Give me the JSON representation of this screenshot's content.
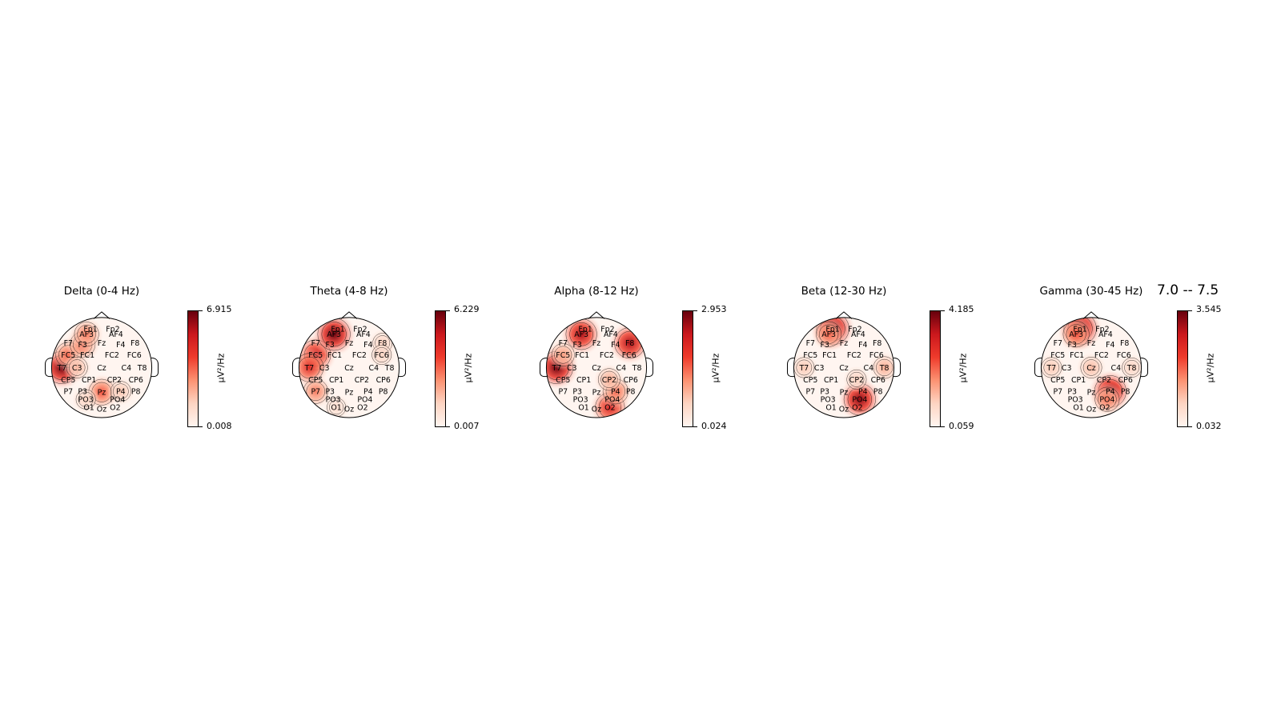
{
  "figure": {
    "time_label": "7.0 -- 7.5"
  },
  "panels": [
    {
      "title": "Delta (0-4 Hz)",
      "vmax": "6.915",
      "vmin": "0.008",
      "unit": "µV²/Hz",
      "hotspots": [
        {
          "channel": "T7",
          "v": 1.0
        },
        {
          "channel": "FC5",
          "v": 0.55
        },
        {
          "channel": "F3",
          "v": 0.55
        },
        {
          "channel": "AF3",
          "v": 0.5
        },
        {
          "channel": "Pz",
          "v": 0.6
        },
        {
          "channel": "C3",
          "v": 0.3
        },
        {
          "channel": "P4",
          "v": 0.25
        },
        {
          "channel": "PO3",
          "v": 0.2
        }
      ]
    },
    {
      "title": "Theta (4-8 Hz)",
      "vmax": "6.229",
      "vmin": "0.007",
      "unit": "µV²/Hz",
      "hotspots": [
        {
          "channel": "FC5",
          "v": 0.85
        },
        {
          "channel": "T7",
          "v": 0.75
        },
        {
          "channel": "AF3",
          "v": 1.0
        },
        {
          "channel": "P7",
          "v": 0.5
        },
        {
          "channel": "F8",
          "v": 0.2
        },
        {
          "channel": "FC6",
          "v": 0.2
        },
        {
          "channel": "O1",
          "v": 0.15
        }
      ]
    },
    {
      "title": "Alpha (8-12 Hz)",
      "vmax": "2.953",
      "vmin": "0.024",
      "unit": "µV²/Hz",
      "hotspots": [
        {
          "channel": "T7",
          "v": 1.0
        },
        {
          "channel": "AF3",
          "v": 0.9
        },
        {
          "channel": "F8",
          "v": 0.9
        },
        {
          "channel": "O2",
          "v": 0.8
        },
        {
          "channel": "P4",
          "v": 0.55
        },
        {
          "channel": "CP2",
          "v": 0.35
        },
        {
          "channel": "FC5",
          "v": 0.4
        }
      ]
    },
    {
      "title": "Beta (12-30 Hz)",
      "vmax": "4.185",
      "vmin": "0.059",
      "unit": "µV²/Hz",
      "hotspots": [
        {
          "channel": "Fp1",
          "v": 1.0
        },
        {
          "channel": "AF3",
          "v": 0.55
        },
        {
          "channel": "PO4",
          "v": 0.95
        },
        {
          "channel": "T8",
          "v": 0.35
        },
        {
          "channel": "T7",
          "v": 0.25
        },
        {
          "channel": "CP2",
          "v": 0.2
        }
      ]
    },
    {
      "title": "Gamma (30-45 Hz)",
      "vmax": "3.545",
      "vmin": "0.032",
      "unit": "µV²/Hz",
      "hotspots": [
        {
          "channel": "Fp1",
          "v": 1.0
        },
        {
          "channel": "AF3",
          "v": 0.6
        },
        {
          "channel": "P4",
          "v": 0.95
        },
        {
          "channel": "PO4",
          "v": 0.5
        },
        {
          "channel": "T7",
          "v": 0.25
        },
        {
          "channel": "Cz",
          "v": 0.3
        },
        {
          "channel": "T8",
          "v": 0.2
        }
      ]
    }
  ],
  "chart_data": {
    "type": "heatmap",
    "colormap": "Reds",
    "colorbar_label": "µV²/Hz",
    "time_label": "7.0 -- 7.5",
    "channels": [
      "Fp1",
      "Fp2",
      "AF3",
      "AF4",
      "F7",
      "F3",
      "Fz",
      "F4",
      "F8",
      "FC5",
      "FC1",
      "FC2",
      "FC6",
      "T7",
      "C3",
      "Cz",
      "C4",
      "T8",
      "CP5",
      "CP1",
      "CP2",
      "CP6",
      "P7",
      "P3",
      "Pz",
      "P4",
      "P8",
      "PO3",
      "PO4",
      "O1",
      "Oz",
      "O2"
    ],
    "bands": [
      {
        "name": "Delta (0-4 Hz)",
        "vmin": 0.008,
        "vmax": 6.915
      },
      {
        "name": "Theta (4-8 Hz)",
        "vmin": 0.007,
        "vmax": 6.229
      },
      {
        "name": "Alpha (8-12 Hz)",
        "vmin": 0.024,
        "vmax": 2.953
      },
      {
        "name": "Beta (12-30 Hz)",
        "vmin": 0.059,
        "vmax": 4.185
      },
      {
        "name": "Gamma (30-45 Hz)",
        "vmin": 0.032,
        "vmax": 3.545
      }
    ]
  }
}
